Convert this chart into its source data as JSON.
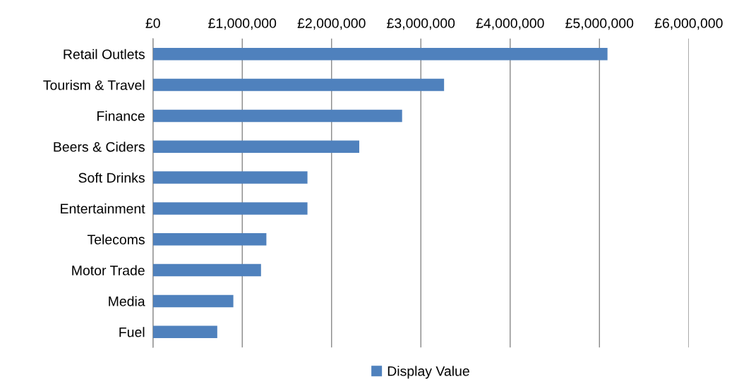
{
  "chart_data": {
    "type": "bar",
    "orientation": "horizontal",
    "categories": [
      "Retail Outlets",
      "Tourism & Travel",
      "Finance",
      "Beers & Ciders",
      "Soft Drinks",
      "Entertainment",
      "Telecoms",
      "Motor Trade",
      "Media",
      "Fuel"
    ],
    "series": [
      {
        "name": "Display Value",
        "color": "#4f81bd",
        "values": [
          5090000,
          3260000,
          2790000,
          2310000,
          1730000,
          1730000,
          1270000,
          1210000,
          900000,
          720000
        ]
      }
    ],
    "xlim": [
      0,
      6000000
    ],
    "xticks": [
      {
        "value": 0,
        "label": "£0"
      },
      {
        "value": 1000000,
        "label": "£1,000,000"
      },
      {
        "value": 2000000,
        "label": "£2,000,000"
      },
      {
        "value": 3000000,
        "label": "£3,000,000"
      },
      {
        "value": 4000000,
        "label": "£4,000,000"
      },
      {
        "value": 5000000,
        "label": "£5,000,000"
      },
      {
        "value": 6000000,
        "label": "£6,000,000"
      }
    ],
    "grid": "x",
    "legend": "bottom"
  }
}
